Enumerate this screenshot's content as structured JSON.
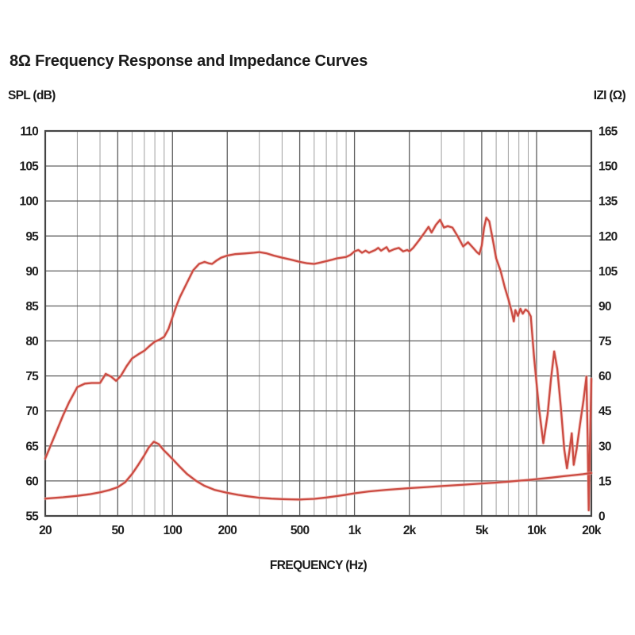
{
  "title": "8Ω Frequency Response and Impedance Curves",
  "axes": {
    "left_label": "SPL (dB)",
    "right_label": "IZI (Ω)",
    "x_label": "FREQUENCY (Hz)"
  },
  "colors": {
    "curve": "#cb4b42",
    "curve_halo": "#f0b0a8",
    "grid_major": "#5f5f5f",
    "grid_minor": "#a0a0a0",
    "border": "#454545",
    "text": "#1f1f1f",
    "background": "#ffffff"
  },
  "chart_data": {
    "type": "line",
    "title": "8Ω Frequency Response and Impedance Curves",
    "xlabel": "FREQUENCY (Hz)",
    "x_scale": "log",
    "x_range_hz": [
      20,
      20000
    ],
    "grid": true,
    "legend": "none",
    "x_tick_labels": [
      "20",
      "50",
      "100",
      "200",
      "500",
      "1k",
      "2k",
      "5k",
      "10k",
      "20k"
    ],
    "x_tick_values": [
      20,
      50,
      100,
      200,
      500,
      1000,
      2000,
      5000,
      10000,
      20000
    ],
    "x_minor_gridlines_hz": [
      30,
      40,
      60,
      70,
      80,
      90,
      300,
      400,
      600,
      700,
      800,
      900,
      3000,
      4000,
      6000,
      7000,
      8000,
      9000
    ],
    "y_left": {
      "label": "SPL (dB)",
      "min": 55,
      "max": 110,
      "step": 5,
      "ticks": [
        110,
        105,
        100,
        95,
        90,
        85,
        80,
        75,
        70,
        65,
        60,
        55
      ]
    },
    "y_right": {
      "label": "IZI (Ω)",
      "min": 0,
      "max": 165,
      "step": 15,
      "ticks": [
        165,
        150,
        135,
        120,
        105,
        90,
        75,
        60,
        45,
        30,
        15,
        0
      ]
    },
    "series": [
      {
        "name": "frequency-response-spl",
        "axis": "left",
        "units": "dB",
        "points": [
          [
            20,
            63.2
          ],
          [
            22,
            65.8
          ],
          [
            25,
            69.3
          ],
          [
            27,
            71.2
          ],
          [
            30,
            73.4
          ],
          [
            33,
            73.9
          ],
          [
            36,
            74.0
          ],
          [
            40,
            74.0
          ],
          [
            43,
            75.3
          ],
          [
            46,
            74.9
          ],
          [
            49,
            74.3
          ],
          [
            52,
            75.0
          ],
          [
            56,
            76.4
          ],
          [
            60,
            77.5
          ],
          [
            65,
            78.1
          ],
          [
            70,
            78.6
          ],
          [
            75,
            79.3
          ],
          [
            80,
            79.9
          ],
          [
            85,
            80.2
          ],
          [
            90,
            80.6
          ],
          [
            95,
            81.7
          ],
          [
            100,
            83.4
          ],
          [
            105,
            85.0
          ],
          [
            110,
            86.3
          ],
          [
            120,
            88.3
          ],
          [
            130,
            90.1
          ],
          [
            140,
            91.0
          ],
          [
            150,
            91.3
          ],
          [
            158,
            91.1
          ],
          [
            165,
            91.0
          ],
          [
            175,
            91.5
          ],
          [
            185,
            91.9
          ],
          [
            200,
            92.2
          ],
          [
            220,
            92.4
          ],
          [
            250,
            92.5
          ],
          [
            280,
            92.6
          ],
          [
            300,
            92.7
          ],
          [
            330,
            92.5
          ],
          [
            360,
            92.2
          ],
          [
            400,
            91.9
          ],
          [
            450,
            91.6
          ],
          [
            500,
            91.3
          ],
          [
            550,
            91.1
          ],
          [
            600,
            91.0
          ],
          [
            650,
            91.2
          ],
          [
            700,
            91.4
          ],
          [
            750,
            91.6
          ],
          [
            800,
            91.8
          ],
          [
            850,
            91.9
          ],
          [
            900,
            92.0
          ],
          [
            950,
            92.3
          ],
          [
            1000,
            92.8
          ],
          [
            1050,
            93.0
          ],
          [
            1100,
            92.6
          ],
          [
            1150,
            92.9
          ],
          [
            1200,
            92.6
          ],
          [
            1300,
            93.0
          ],
          [
            1350,
            93.3
          ],
          [
            1400,
            92.9
          ],
          [
            1500,
            93.4
          ],
          [
            1550,
            92.8
          ],
          [
            1650,
            93.1
          ],
          [
            1750,
            93.3
          ],
          [
            1850,
            92.8
          ],
          [
            1950,
            93.0
          ],
          [
            2000,
            92.8
          ],
          [
            2100,
            93.3
          ],
          [
            2250,
            94.3
          ],
          [
            2400,
            95.3
          ],
          [
            2550,
            96.3
          ],
          [
            2650,
            95.5
          ],
          [
            2800,
            96.6
          ],
          [
            2950,
            97.3
          ],
          [
            3100,
            96.2
          ],
          [
            3250,
            96.4
          ],
          [
            3450,
            96.2
          ],
          [
            3700,
            94.9
          ],
          [
            3950,
            93.5
          ],
          [
            4200,
            94.1
          ],
          [
            4450,
            93.4
          ],
          [
            4700,
            92.7
          ],
          [
            4850,
            92.4
          ],
          [
            5000,
            93.6
          ],
          [
            5150,
            96.2
          ],
          [
            5300,
            97.6
          ],
          [
            5500,
            97.1
          ],
          [
            5750,
            94.5
          ],
          [
            6000,
            91.8
          ],
          [
            6350,
            90.0
          ],
          [
            6700,
            87.6
          ],
          [
            7000,
            86.0
          ],
          [
            7300,
            84.2
          ],
          [
            7500,
            82.8
          ],
          [
            7650,
            84.4
          ],
          [
            7900,
            83.6
          ],
          [
            8150,
            84.6
          ],
          [
            8400,
            83.9
          ],
          [
            8700,
            84.5
          ],
          [
            9000,
            84.2
          ],
          [
            9300,
            83.5
          ],
          [
            9700,
            77.6
          ],
          [
            10300,
            70.5
          ],
          [
            10900,
            65.4
          ],
          [
            11500,
            69.5
          ],
          [
            12000,
            74.5
          ],
          [
            12500,
            78.5
          ],
          [
            13000,
            76.0
          ],
          [
            13600,
            70.5
          ],
          [
            14200,
            64.5
          ],
          [
            14700,
            61.8
          ],
          [
            15200,
            64.5
          ],
          [
            15600,
            66.8
          ],
          [
            16000,
            62.3
          ],
          [
            16600,
            64.5
          ],
          [
            17300,
            68.0
          ],
          [
            18100,
            71.5
          ],
          [
            18800,
            74.9
          ],
          [
            19100,
            66.0
          ],
          [
            19350,
            55.8
          ],
          [
            19650,
            65.0
          ],
          [
            20000,
            74.6
          ]
        ]
      },
      {
        "name": "impedance-magnitude",
        "axis": "right",
        "units": "ohm",
        "points": [
          [
            20,
            7.4
          ],
          [
            25,
            8.0
          ],
          [
            30,
            8.6
          ],
          [
            35,
            9.3
          ],
          [
            40,
            10.1
          ],
          [
            45,
            11.1
          ],
          [
            50,
            12.3
          ],
          [
            55,
            14.5
          ],
          [
            60,
            18.0
          ],
          [
            65,
            22.0
          ],
          [
            70,
            26.0
          ],
          [
            74,
            29.3
          ],
          [
            79,
            31.8
          ],
          [
            84,
            30.8
          ],
          [
            90,
            28.0
          ],
          [
            95,
            26.2
          ],
          [
            100,
            24.4
          ],
          [
            110,
            21.0
          ],
          [
            120,
            18.0
          ],
          [
            135,
            15.0
          ],
          [
            150,
            12.9
          ],
          [
            170,
            11.2
          ],
          [
            200,
            9.9
          ],
          [
            230,
            9.0
          ],
          [
            260,
            8.4
          ],
          [
            300,
            7.8
          ],
          [
            350,
            7.4
          ],
          [
            400,
            7.2
          ],
          [
            450,
            7.1
          ],
          [
            500,
            7.05
          ],
          [
            600,
            7.3
          ],
          [
            700,
            7.9
          ],
          [
            800,
            8.5
          ],
          [
            900,
            9.1
          ],
          [
            1000,
            9.7
          ],
          [
            1200,
            10.5
          ],
          [
            1500,
            11.2
          ],
          [
            2000,
            11.9
          ],
          [
            2500,
            12.4
          ],
          [
            3000,
            12.8
          ],
          [
            4000,
            13.4
          ],
          [
            5000,
            13.9
          ],
          [
            6000,
            14.3
          ],
          [
            7000,
            14.7
          ],
          [
            8000,
            15.1
          ],
          [
            9000,
            15.4
          ],
          [
            10000,
            15.8
          ],
          [
            12000,
            16.4
          ],
          [
            14000,
            17.0
          ],
          [
            16000,
            17.5
          ],
          [
            18000,
            17.9
          ],
          [
            20000,
            18.4
          ]
        ]
      }
    ]
  }
}
